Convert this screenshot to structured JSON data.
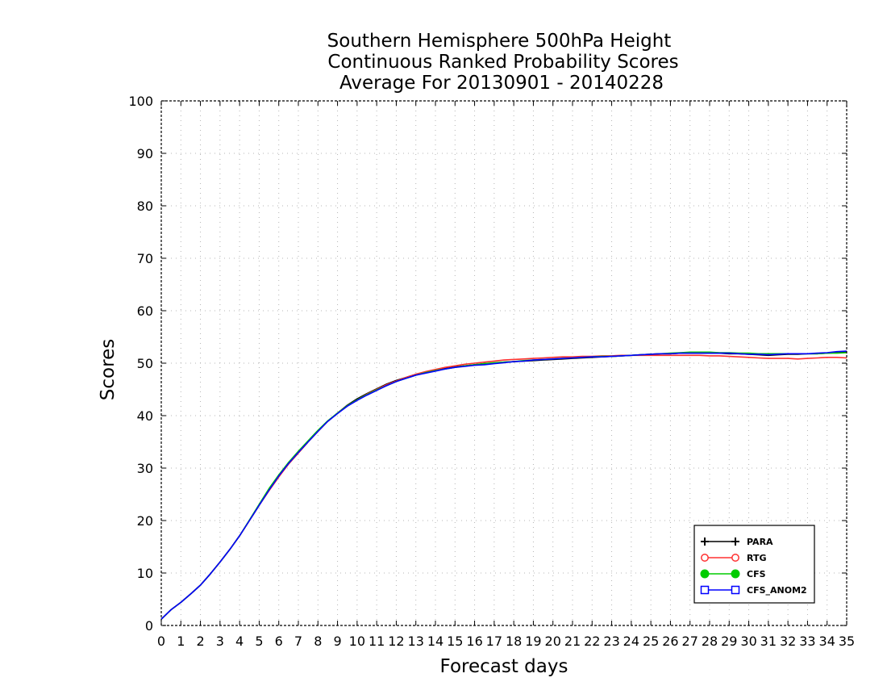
{
  "chart_data": {
    "type": "line",
    "title_lines": [
      "Southern Hemisphere 500hPa Height",
      "Continuous Ranked Probability Scores",
      "Average For 20130901 - 20140228"
    ],
    "xlabel": "Forecast days",
    "ylabel": "Scores",
    "xlim": [
      0,
      35
    ],
    "ylim": [
      0,
      100
    ],
    "x_ticks": [
      0,
      1,
      2,
      3,
      4,
      5,
      6,
      7,
      8,
      9,
      10,
      11,
      12,
      13,
      14,
      15,
      16,
      17,
      18,
      19,
      20,
      21,
      22,
      23,
      24,
      25,
      26,
      27,
      28,
      29,
      30,
      31,
      32,
      33,
      34,
      35
    ],
    "y_ticks": [
      0,
      10,
      20,
      30,
      40,
      50,
      60,
      70,
      80,
      90,
      100
    ],
    "grid": true,
    "legend_position": "bottom-right",
    "x": [
      0,
      0.5,
      1,
      1.5,
      2,
      2.5,
      3,
      3.5,
      4,
      4.5,
      5,
      5.5,
      6,
      6.5,
      7,
      7.5,
      8,
      8.5,
      9,
      9.5,
      10,
      10.5,
      11,
      11.5,
      12,
      12.5,
      13,
      13.5,
      14,
      14.5,
      15,
      15.5,
      16,
      16.5,
      17,
      17.5,
      18,
      18.5,
      19,
      19.5,
      20,
      20.5,
      21,
      21.5,
      22,
      22.5,
      23,
      23.5,
      24,
      24.5,
      25,
      25.5,
      26,
      26.5,
      27,
      27.5,
      28,
      28.5,
      29,
      29.5,
      30,
      30.5,
      31,
      31.5,
      32,
      32.5,
      33,
      33.5,
      34,
      34.5,
      35
    ],
    "series": [
      {
        "name": "PARA",
        "color": "#000000",
        "marker": "plus",
        "values": [
          1.2,
          3.0,
          4.4,
          6.0,
          7.7,
          9.8,
          12.1,
          14.5,
          17.1,
          20.0,
          22.9,
          25.8,
          28.4,
          30.8,
          32.9,
          35.0,
          37.0,
          38.9,
          40.5,
          42.0,
          43.2,
          44.2,
          45.1,
          46.0,
          46.7,
          47.3,
          47.9,
          48.3,
          48.7,
          49.0,
          49.3,
          49.5,
          49.7,
          49.9,
          50.0,
          50.2,
          50.3,
          50.4,
          50.5,
          50.6,
          50.7,
          50.8,
          50.9,
          51.0,
          51.1,
          51.2,
          51.3,
          51.4,
          51.5,
          51.6,
          51.7,
          51.8,
          51.8,
          51.9,
          51.9,
          51.9,
          51.9,
          51.9,
          51.8,
          51.8,
          51.7,
          51.6,
          51.5,
          51.6,
          51.7,
          51.7,
          51.8,
          51.8,
          51.9,
          52.0,
          52.1
        ]
      },
      {
        "name": "RTG",
        "color": "#ff3030",
        "marker": "circle-open",
        "values": [
          1.2,
          3.0,
          4.4,
          6.0,
          7.7,
          9.8,
          12.1,
          14.5,
          17.1,
          20.0,
          22.9,
          25.7,
          28.3,
          30.8,
          32.9,
          35.0,
          37.0,
          38.9,
          40.5,
          41.9,
          43.0,
          44.1,
          45.0,
          45.9,
          46.6,
          47.3,
          47.9,
          48.4,
          48.8,
          49.2,
          49.5,
          49.8,
          50.0,
          50.2,
          50.4,
          50.6,
          50.7,
          50.8,
          50.9,
          51.0,
          51.1,
          51.2,
          51.2,
          51.3,
          51.3,
          51.4,
          51.4,
          51.5,
          51.5,
          51.5,
          51.5,
          51.5,
          51.5,
          51.5,
          51.5,
          51.5,
          51.4,
          51.4,
          51.3,
          51.2,
          51.1,
          51.0,
          50.9,
          50.9,
          50.9,
          50.8,
          50.9,
          51.0,
          51.1,
          51.1,
          51.0
        ]
      },
      {
        "name": "CFS",
        "color": "#00cc00",
        "marker": "circle-filled",
        "values": [
          1.2,
          3.0,
          4.4,
          6.0,
          7.7,
          9.8,
          12.1,
          14.5,
          17.1,
          20.1,
          23.1,
          26.1,
          28.7,
          31.1,
          33.2,
          35.2,
          37.2,
          39.0,
          40.5,
          41.9,
          43.0,
          44.0,
          44.9,
          45.7,
          46.5,
          47.1,
          47.7,
          48.2,
          48.6,
          48.9,
          49.2,
          49.5,
          49.7,
          49.9,
          50.1,
          50.2,
          50.3,
          50.5,
          50.6,
          50.7,
          50.8,
          50.9,
          51.0,
          51.1,
          51.2,
          51.3,
          51.3,
          51.4,
          51.5,
          51.6,
          51.7,
          51.8,
          51.9,
          52.0,
          52.1,
          52.1,
          52.1,
          52.0,
          52.0,
          51.9,
          51.9,
          51.8,
          51.8,
          51.8,
          51.8,
          51.8,
          51.8,
          51.8,
          51.9,
          51.9,
          52.0
        ]
      },
      {
        "name": "CFS_ANOM2",
        "color": "#0000ff",
        "marker": "square-open",
        "values": [
          1.2,
          3.0,
          4.4,
          6.0,
          7.7,
          9.8,
          12.1,
          14.5,
          17.1,
          20.0,
          22.9,
          25.8,
          28.5,
          30.9,
          33.0,
          35.0,
          37.0,
          38.9,
          40.4,
          41.8,
          42.9,
          43.9,
          44.8,
          45.7,
          46.5,
          47.1,
          47.7,
          48.1,
          48.5,
          48.9,
          49.2,
          49.4,
          49.6,
          49.7,
          49.9,
          50.1,
          50.3,
          50.4,
          50.6,
          50.7,
          50.8,
          50.9,
          51.0,
          51.1,
          51.2,
          51.2,
          51.3,
          51.4,
          51.5,
          51.6,
          51.7,
          51.8,
          51.8,
          51.9,
          51.9,
          51.9,
          51.9,
          51.9,
          51.9,
          51.8,
          51.7,
          51.7,
          51.6,
          51.7,
          51.8,
          51.8,
          51.8,
          51.9,
          52.0,
          52.2,
          52.3
        ]
      }
    ]
  }
}
